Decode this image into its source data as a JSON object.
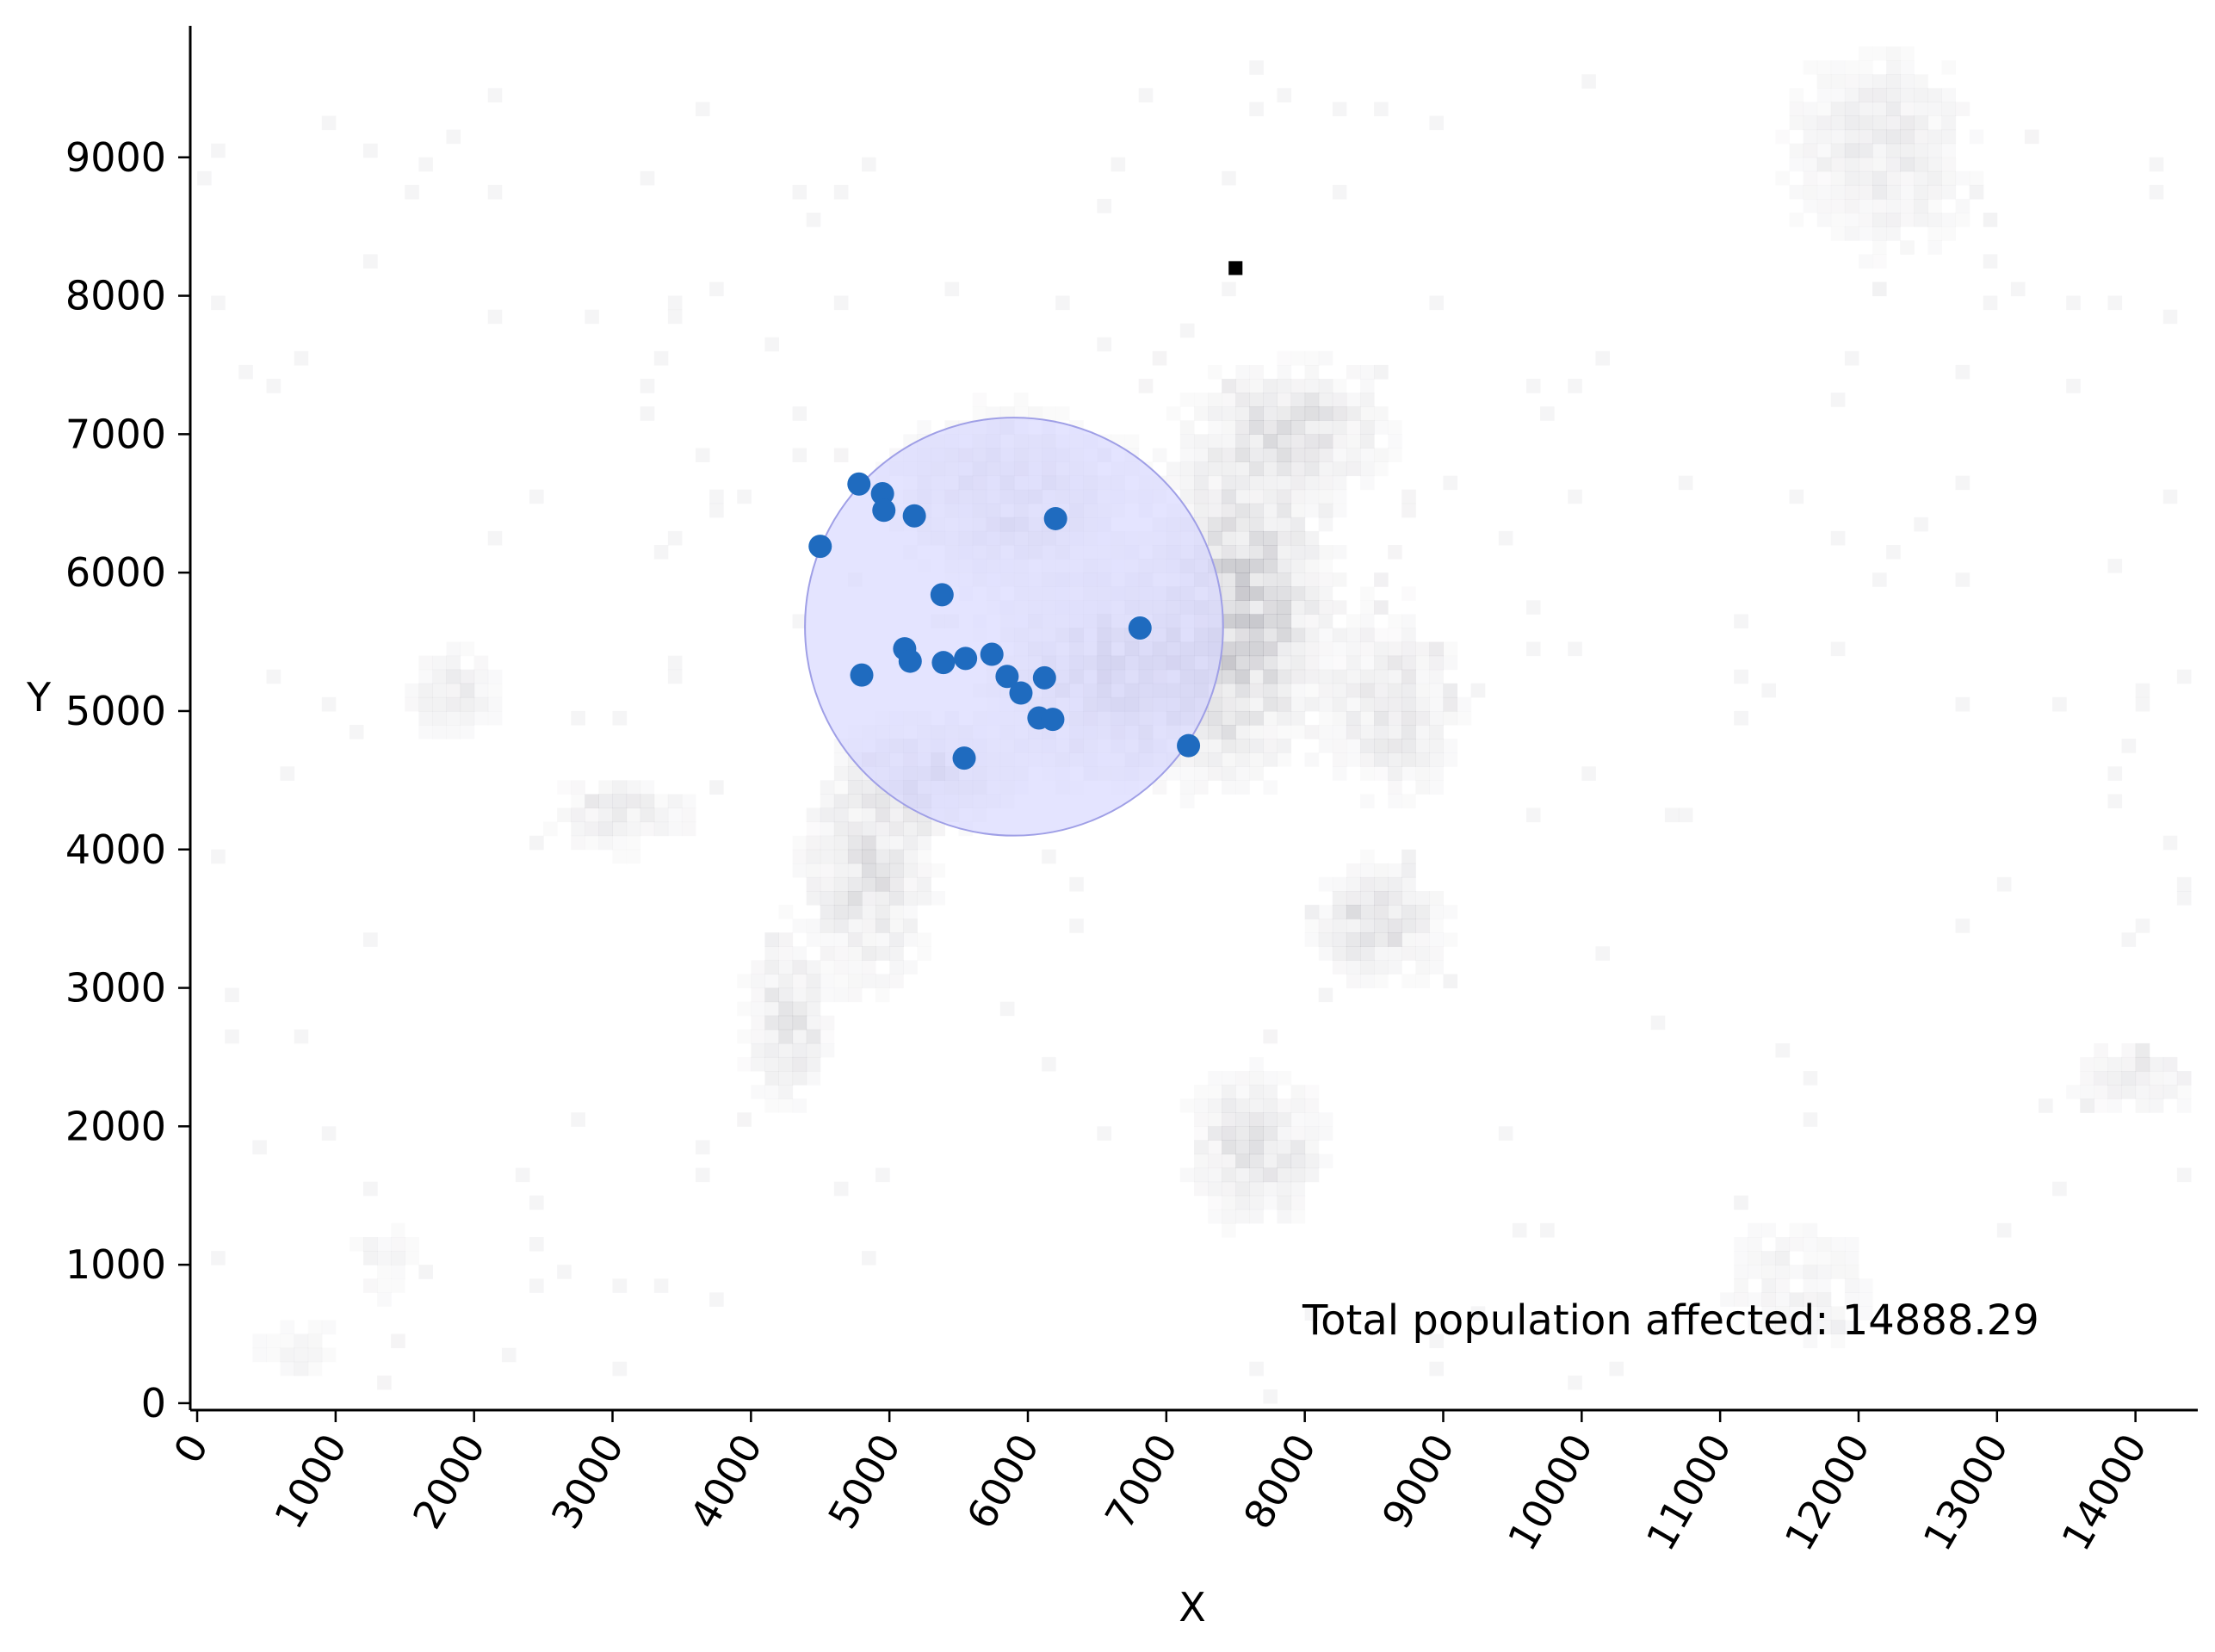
{
  "chart_data": {
    "type": "scatter",
    "title": "",
    "xlabel": "X",
    "ylabel": "Y",
    "xlim": [
      -50,
      14450
    ],
    "ylim": [
      -50,
      9950
    ],
    "xticks": [
      0,
      1000,
      2000,
      3000,
      4000,
      5000,
      6000,
      7000,
      8000,
      9000,
      10000,
      11000,
      12000,
      13000,
      14000
    ],
    "yticks": [
      0,
      1000,
      2000,
      3000,
      4000,
      5000,
      6000,
      7000,
      8000,
      9000
    ],
    "grid": false,
    "series": [
      {
        "color": "#1f6bbf",
        "points": [
          [
            4780,
            6640
          ],
          [
            4950,
            6570
          ],
          [
            4960,
            6450
          ],
          [
            5180,
            6410
          ],
          [
            6200,
            6390
          ],
          [
            4500,
            6190
          ],
          [
            5380,
            5840
          ],
          [
            6810,
            5600
          ],
          [
            5110,
            5450
          ],
          [
            5150,
            5360
          ],
          [
            5390,
            5350
          ],
          [
            5550,
            5380
          ],
          [
            5740,
            5410
          ],
          [
            4800,
            5260
          ],
          [
            5850,
            5250
          ],
          [
            6120,
            5240
          ],
          [
            5950,
            5130
          ],
          [
            6080,
            4950
          ],
          [
            6180,
            4940
          ],
          [
            7160,
            4750
          ],
          [
            5540,
            4660
          ]
        ]
      }
    ],
    "circle": {
      "center": [
        5900,
        5610
      ],
      "radius": 1510,
      "fill": "#d8d8ff",
      "stroke": "#9f9fe6"
    },
    "heatmap_color": "#403f50",
    "annotations": [
      {
        "text": "Total population affected: 14888.29",
        "x": 8000,
        "y": 600
      }
    ]
  }
}
